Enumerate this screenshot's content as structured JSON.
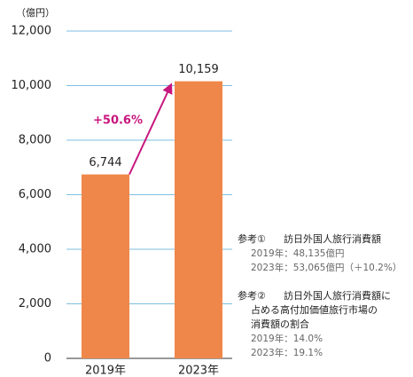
{
  "chart_data": {
    "type": "bar",
    "y_unit": "（億円）",
    "categories": [
      "2019年",
      "2023年"
    ],
    "values": [
      6744,
      10159
    ],
    "value_labels": [
      "6,744",
      "10,159"
    ],
    "color": "#f0874a",
    "ylim": [
      0,
      12000
    ],
    "yticks": [
      0,
      {
        "value": 2000,
        "label": "2,000"
      },
      {
        "value": 4000,
        "label": "4,000"
      },
      {
        "value": 6000,
        "label": "6,000"
      },
      {
        "value": 8000,
        "label": "8,000"
      },
      {
        "value": 10000,
        "label": "10,000"
      },
      {
        "value": 12000,
        "label": "12,000"
      }
    ],
    "grid": true,
    "annotation": "+50.6%",
    "annotation_color": "#c8167e",
    "notes": [
      {
        "label": "参考①",
        "lines": [
          "訪日外国人旅行消費額"
        ],
        "details": [
          "2019年：48,135億円",
          "2023年：53,065億円（＋10.2%）"
        ]
      },
      {
        "label": "参考②",
        "lines": [
          "訪日外国人旅行消費額に",
          "占める高付加価値旅行市場の",
          "消費額の割合"
        ],
        "details": [
          "2019年：14.0%",
          "2023年：19.1%"
        ]
      }
    ]
  }
}
